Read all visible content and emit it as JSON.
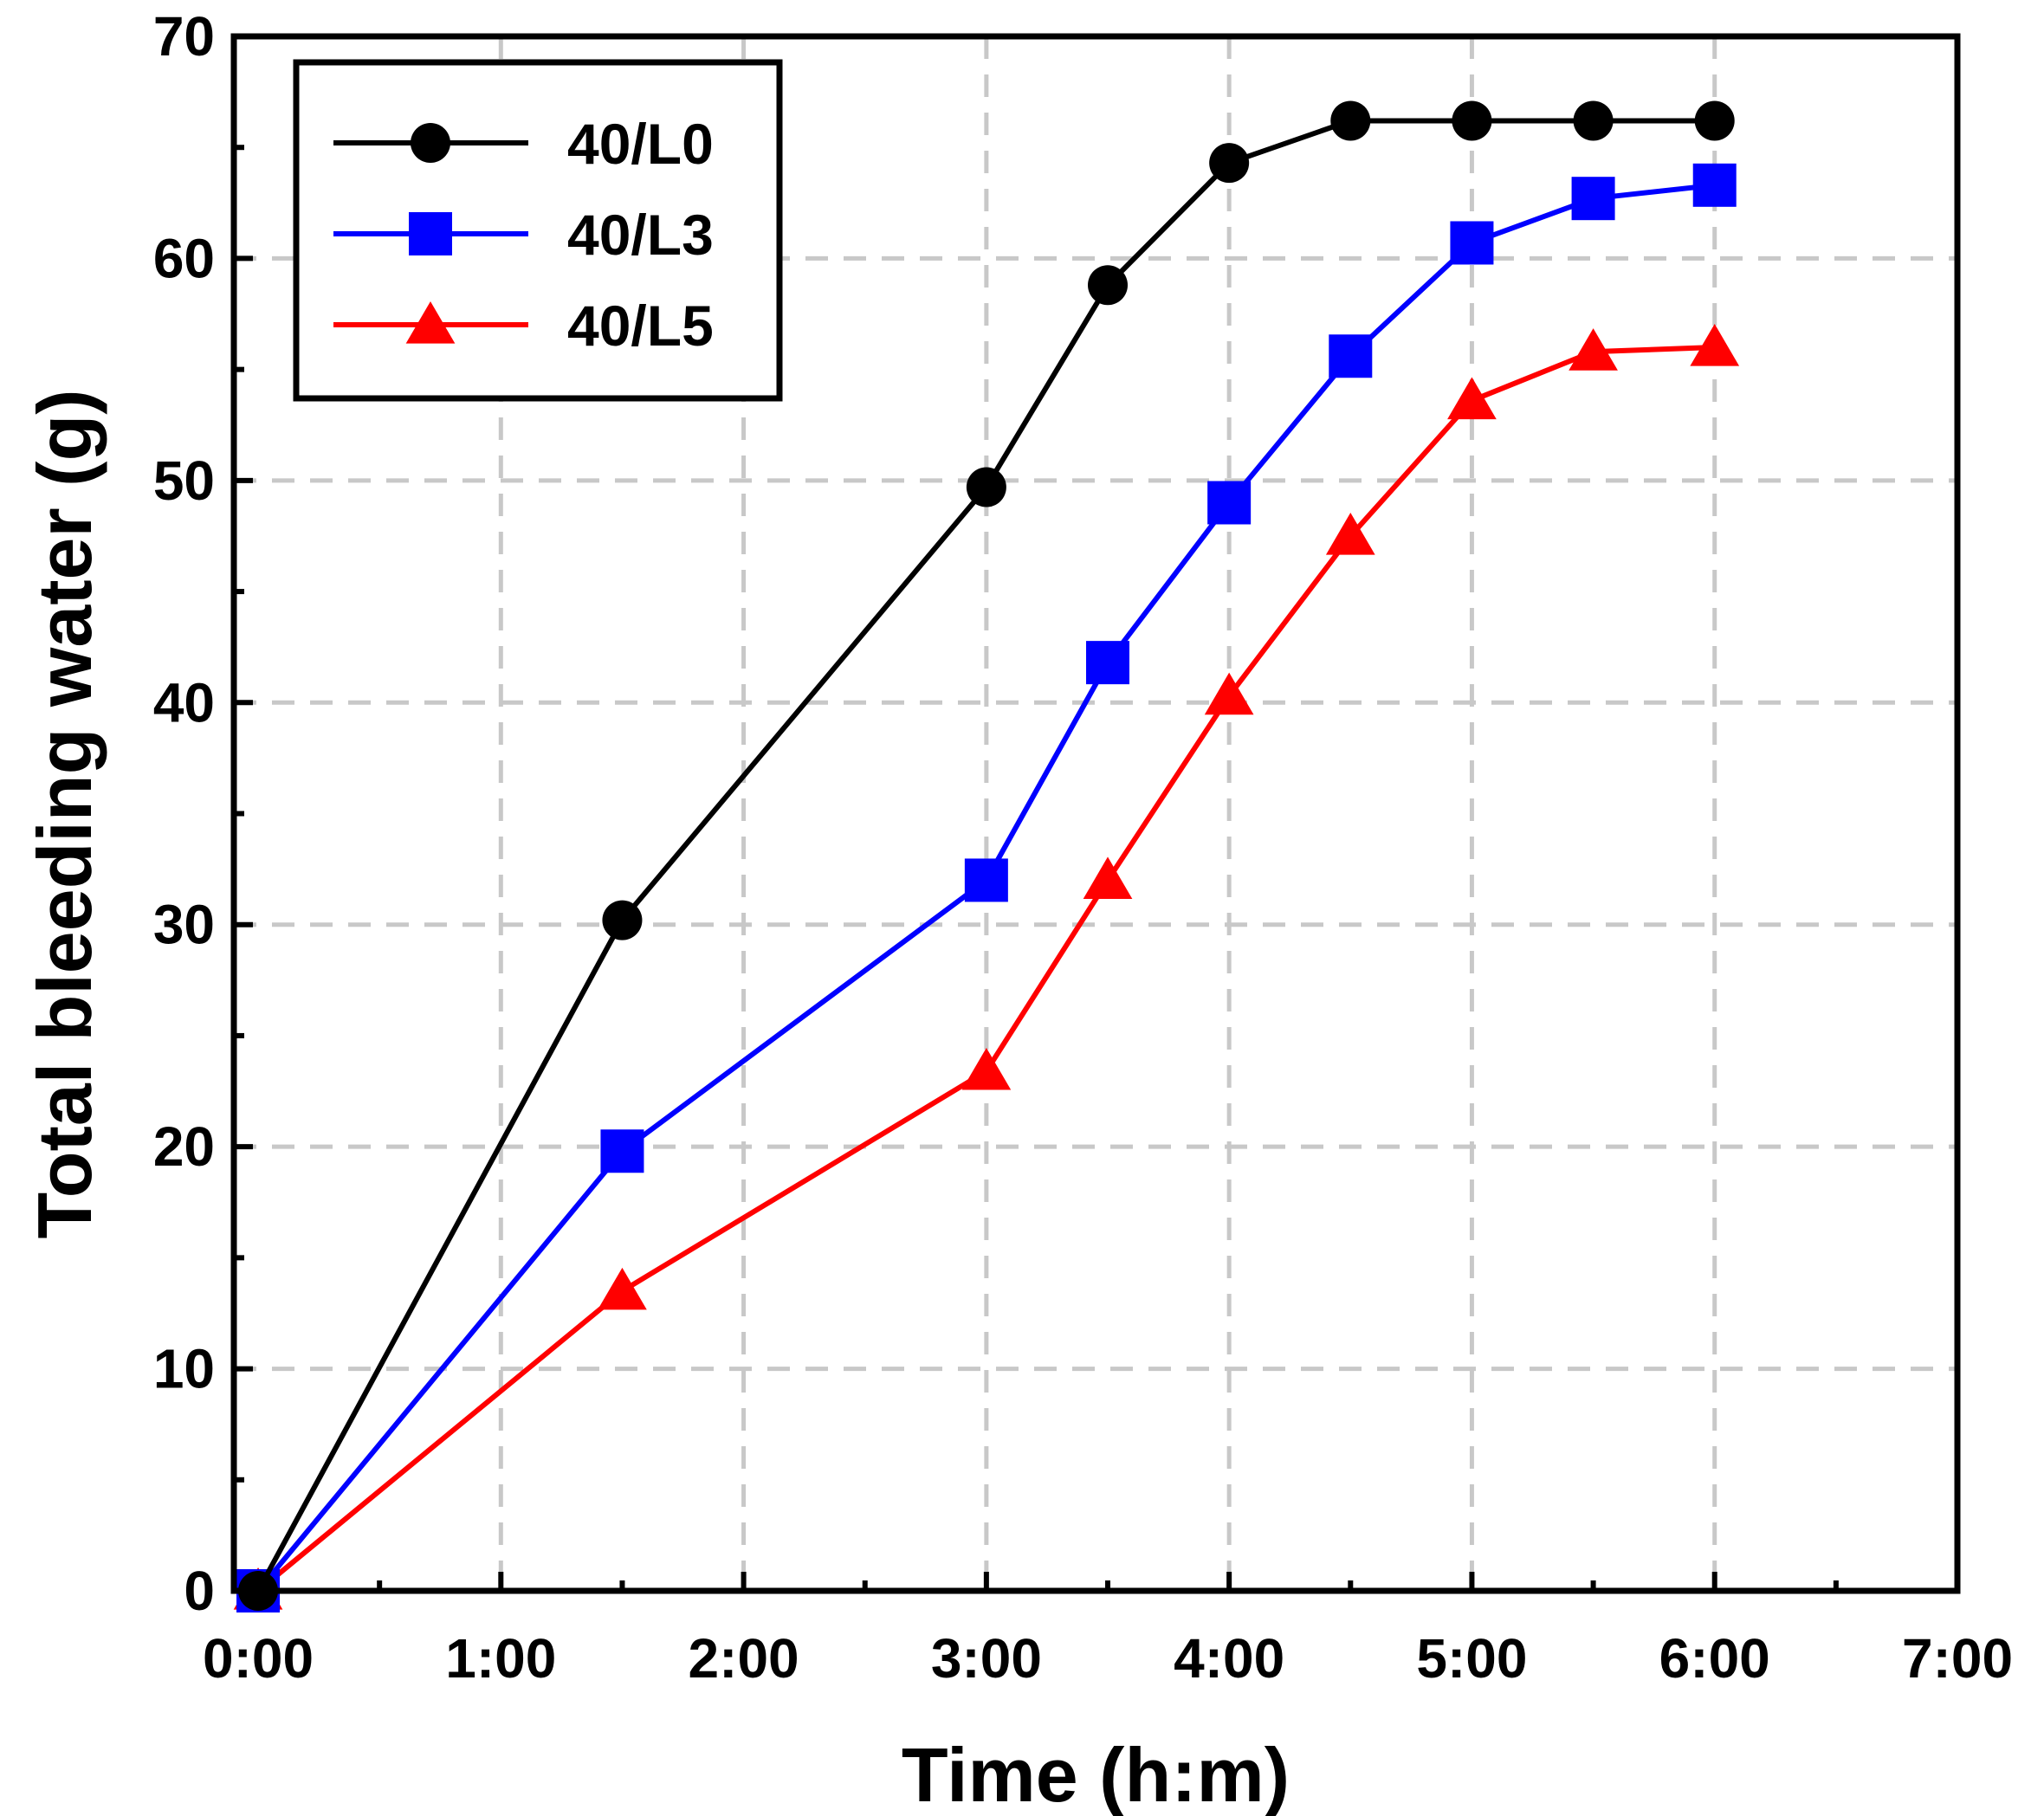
{
  "chart_data": {
    "type": "line",
    "title": "",
    "xlabel": "Time (h:m)",
    "ylabel": "Total bleeding water (g)",
    "xlim": [
      -0.1,
      7
    ],
    "ylim": [
      0,
      70
    ],
    "x_ticks": [
      0,
      1,
      2,
      3,
      4,
      5,
      6,
      7
    ],
    "x_tick_labels": [
      "0:00",
      "1:00",
      "2:00",
      "3:00",
      "4:00",
      "5:00",
      "6:00",
      "7:00"
    ],
    "y_ticks": [
      0,
      10,
      20,
      30,
      40,
      50,
      60,
      70
    ],
    "y_tick_labels": [
      "0",
      "10",
      "20",
      "30",
      "40",
      "50",
      "60",
      "70"
    ],
    "grid": true,
    "legend_position": "top-left",
    "x": [
      0,
      1.5,
      3,
      3.5,
      4,
      4.5,
      5,
      5.5,
      6
    ],
    "series": [
      {
        "name": "40/L0",
        "marker": "circle",
        "color": "#000000",
        "values": [
          0,
          30.2,
          49.7,
          58.8,
          64.3,
          66.2,
          66.2,
          66.2,
          66.2
        ]
      },
      {
        "name": "40/L3",
        "marker": "square",
        "color": "#0000ff",
        "values": [
          0,
          19.8,
          32.0,
          41.8,
          49.0,
          55.6,
          60.7,
          62.7,
          63.3
        ]
      },
      {
        "name": "40/L5",
        "marker": "triangle",
        "color": "#ff0000",
        "values": [
          0,
          13.5,
          23.4,
          32.0,
          40.3,
          47.5,
          53.6,
          55.8,
          56.0
        ]
      }
    ]
  }
}
